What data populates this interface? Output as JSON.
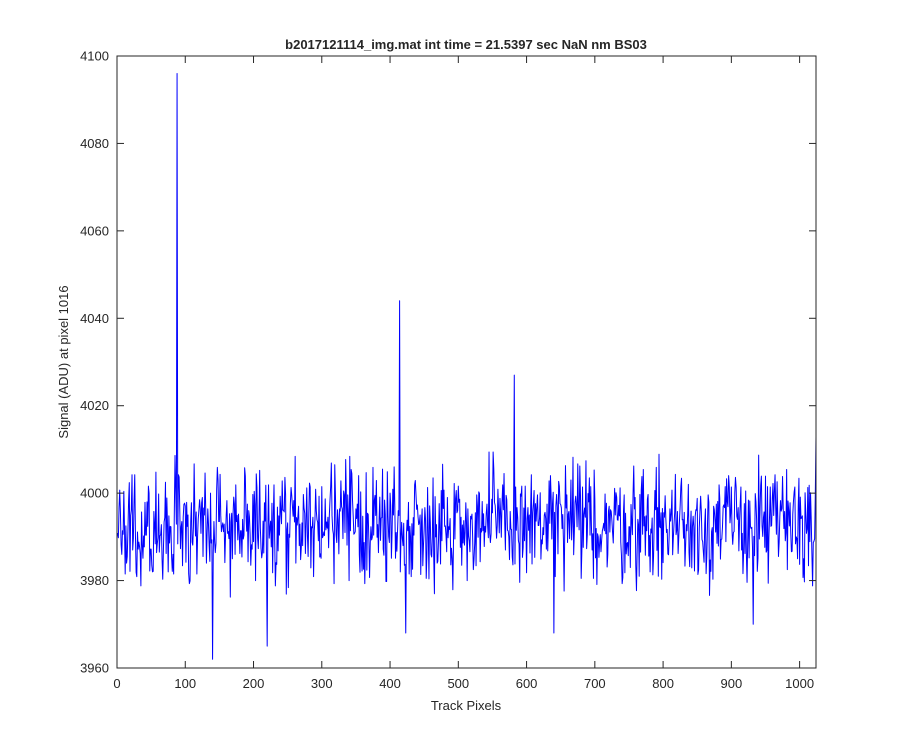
{
  "chart_data": {
    "type": "line",
    "title": "b2017121114_img.mat int time = 21.5397 sec  NaN nm BS03",
    "xlabel": "Track Pixels",
    "ylabel": "Signal (ADU) at pixel 1016",
    "xlim": [
      0,
      1024
    ],
    "ylim": [
      3960,
      4100
    ],
    "xticks": [
      0,
      100,
      200,
      300,
      400,
      500,
      600,
      700,
      800,
      900,
      1000
    ],
    "yticks": [
      3960,
      3980,
      4000,
      4020,
      4040,
      4060,
      4080,
      4100
    ],
    "grid": false,
    "line_color": "#0000ff",
    "series": [
      {
        "x_start": 1,
        "x_step": 1,
        "baseline_mean": 3993,
        "noise_range": [
          3965,
          4020
        ],
        "notable_points": [
          {
            "x": 88,
            "y": 4096
          },
          {
            "x": 140,
            "y": 3962
          },
          {
            "x": 220,
            "y": 3965
          },
          {
            "x": 414,
            "y": 4044
          },
          {
            "x": 423,
            "y": 3968
          },
          {
            "x": 582,
            "y": 4027
          },
          {
            "x": 640,
            "y": 3968
          },
          {
            "x": 932,
            "y": 3970
          },
          {
            "x": 1024,
            "y": 4013
          }
        ]
      }
    ]
  }
}
